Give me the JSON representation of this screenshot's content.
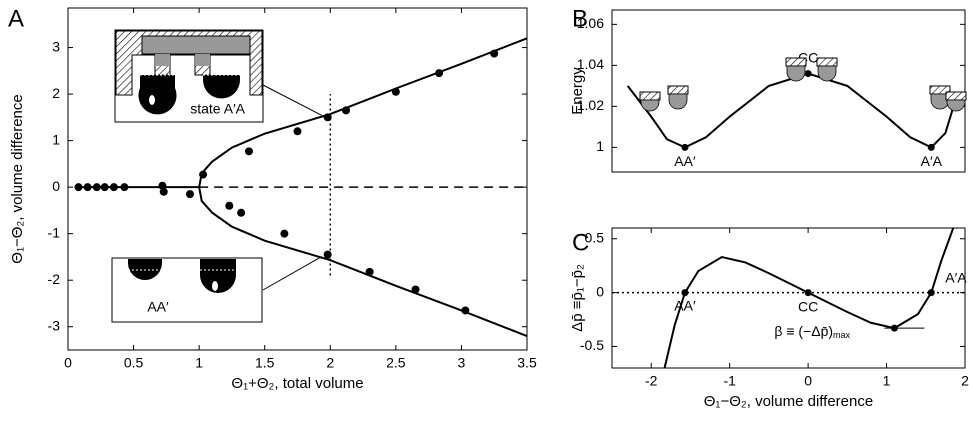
{
  "chart_data": [
    {
      "type": "scatter",
      "panel": "A",
      "x_label": "Θ₁+Θ₂, total volume",
      "y_label": "Θ₁−Θ₂, volume difference",
      "xlim": [
        0,
        3.5
      ],
      "xticks": [
        0,
        0.5,
        1,
        1.5,
        2,
        2.5,
        3,
        3.5
      ],
      "ylim": [
        -3.5,
        3.85
      ],
      "yticks": [
        -3,
        -2,
        -1,
        0,
        1,
        2,
        3
      ],
      "annotations": [
        "state A′A",
        "AA′"
      ],
      "series": [
        {
          "style": "markers",
          "color": "#000000",
          "x": [
            0.08,
            0.15,
            0.22,
            0.28,
            0.35,
            0.43,
            0.72,
            0.73,
            0.93,
            1.03,
            1.23,
            1.32,
            1.38,
            1.65,
            1.75,
            1.98,
            1.98,
            2.12,
            2.3,
            2.5,
            2.65,
            2.83,
            3.03,
            3.25
          ],
          "values": [
            0,
            0,
            0,
            0,
            0,
            0,
            0.03,
            -0.1,
            -0.15,
            0.27,
            -0.4,
            -0.55,
            0.77,
            -1.0,
            1.2,
            1.5,
            -1.45,
            1.65,
            -1.82,
            2.05,
            -2.2,
            2.45,
            -2.65,
            2.87
          ]
        },
        {
          "style": "solid",
          "color": "#000000",
          "x": [
            1,
            1.02,
            1.1,
            1.25,
            1.5,
            2,
            2.5,
            3,
            3.5
          ],
          "values": [
            0,
            0.3,
            0.55,
            0.85,
            1.15,
            1.57,
            2.12,
            2.65,
            3.2
          ]
        },
        {
          "style": "solid",
          "color": "#000000",
          "x": [
            1,
            1.02,
            1.1,
            1.25,
            1.5,
            2,
            2.5,
            3,
            3.5
          ],
          "values": [
            0,
            -0.3,
            -0.55,
            -0.85,
            -1.15,
            -1.57,
            -2.12,
            -2.65,
            -3.2
          ]
        },
        {
          "style": "solid",
          "color": "#000000",
          "x": [
            0.05,
            1
          ],
          "values": [
            0,
            0
          ]
        },
        {
          "style": "dashed",
          "color": "#000000",
          "x": [
            1,
            3.5
          ],
          "values": [
            0,
            0
          ]
        },
        {
          "style": "dotted",
          "color": "#000000",
          "x": [
            2,
            2
          ],
          "values": [
            -1.9,
            2.0
          ]
        }
      ]
    },
    {
      "type": "line",
      "panel": "B",
      "y_label": "Energy",
      "xlim": [
        -2.5,
        2.0
      ],
      "ylim": [
        0.988,
        1.067
      ],
      "yticks": [
        1,
        1.02,
        1.04,
        1.06
      ],
      "series": [
        {
          "style": "solid",
          "color": "#000000",
          "x": [
            -2.3,
            -2.0,
            -1.8,
            -1.57,
            -1.3,
            -1.0,
            -0.5,
            0,
            0.5,
            1.0,
            1.3,
            1.57,
            1.75,
            1.91
          ],
          "values": [
            1.03,
            1.015,
            1.004,
            1.0,
            1.005,
            1.015,
            1.03,
            1.036,
            1.03,
            1.015,
            1.005,
            1.0,
            1.007,
            1.027
          ]
        }
      ],
      "points": [
        {
          "x": -1.57,
          "y": 1.0,
          "label": "AA′"
        },
        {
          "x": 0,
          "y": 1.036,
          "label": "CC"
        },
        {
          "x": 1.57,
          "y": 1.0,
          "label": "A′A"
        }
      ]
    },
    {
      "type": "line",
      "panel": "C",
      "x_label": "Θ₁−Θ₂, volume difference",
      "y_label": "Δp̄ ≡p̄₁−p̄₂",
      "xlim": [
        -2.5,
        2.0
      ],
      "xticks": [
        -2,
        -1,
        0,
        1,
        2
      ],
      "ylim": [
        -0.7,
        0.6
      ],
      "yticks": [
        -0.5,
        0,
        0.5
      ],
      "annotation": "β ≡ (−Δp̄)",
      "annotation_sub": "max",
      "series": [
        {
          "style": "solid",
          "color": "#000000",
          "x": [
            -1.83,
            -1.7,
            -1.57,
            -1.4,
            -1.1,
            -0.8,
            -0.5,
            0,
            0.5,
            0.8,
            1.1,
            1.4,
            1.57,
            1.7,
            1.85
          ],
          "values": [
            -0.7,
            -0.3,
            0,
            0.2,
            0.33,
            0.28,
            0.18,
            0,
            -0.18,
            -0.28,
            -0.33,
            -0.2,
            0,
            0.3,
            0.6
          ]
        },
        {
          "style": "dotted",
          "color": "#000000",
          "x": [
            -2.5,
            2.0
          ],
          "values": [
            0,
            0
          ]
        }
      ],
      "points": [
        {
          "x": -1.57,
          "y": 0,
          "label": "AA′"
        },
        {
          "x": 0,
          "y": 0,
          "label": "CC"
        },
        {
          "x": 1.57,
          "y": 0,
          "label": "A′A"
        },
        {
          "x": 1.1,
          "y": -0.33
        }
      ]
    }
  ]
}
